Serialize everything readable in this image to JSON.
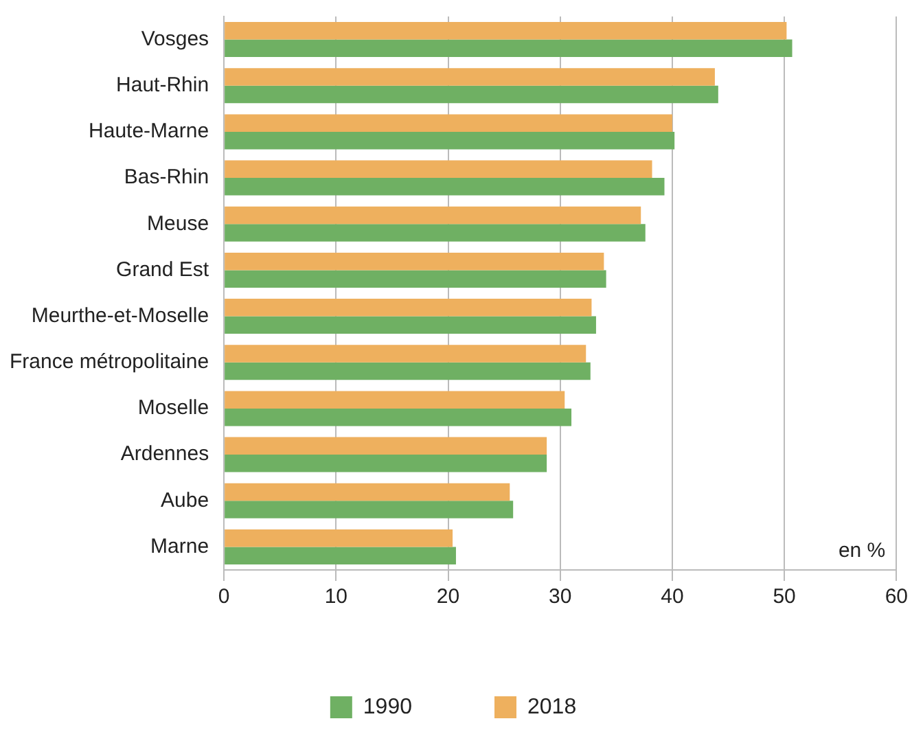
{
  "chart_data": {
    "type": "bar",
    "orientation": "horizontal",
    "categories": [
      "Vosges",
      "Haut-Rhin",
      "Haute-Marne",
      "Bas-Rhin",
      "Meuse",
      "Grand Est",
      "Meurthe-et-Moselle",
      "France métropolitaine",
      "Moselle",
      "Ardennes",
      "Aube",
      "Marne"
    ],
    "series": [
      {
        "name": "1990",
        "color": "#6fb063",
        "values": [
          50.7,
          44.1,
          40.2,
          39.3,
          37.6,
          34.1,
          33.2,
          32.7,
          31.0,
          28.8,
          25.8,
          20.7
        ]
      },
      {
        "name": "2018",
        "color": "#eeb05e",
        "values": [
          50.2,
          43.8,
          40.0,
          38.2,
          37.2,
          33.9,
          32.8,
          32.3,
          30.4,
          28.8,
          25.5,
          20.4
        ]
      }
    ],
    "xlim": [
      0,
      60
    ],
    "xticks": [
      0,
      10,
      20,
      30,
      40,
      50,
      60
    ],
    "grid": "x",
    "legend": "bottom",
    "annotations": [
      "en %"
    ]
  }
}
